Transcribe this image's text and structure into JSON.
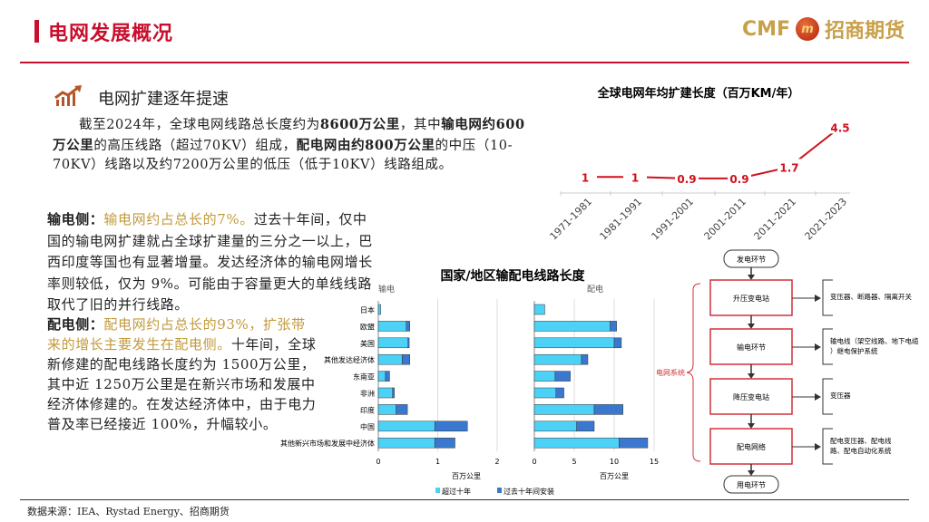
{
  "header": {
    "title": "电网发展概况",
    "logo_text": "CMF",
    "logo_mark": "m",
    "logo_cn": "招商期货"
  },
  "section": {
    "title": "电网扩建逐年提速",
    "icon": "growth-chart-icon"
  },
  "intro": {
    "p1": "截至2024年，全球电网线路总长度约为",
    "b1": "8600万公里",
    "p2": "，其中",
    "b2": "输电网约600万公里",
    "p3": "的高压线路（超过70KV）组成，",
    "b3": "配电网由约800万公里",
    "p4": "的中压（10-70KV）线路以及约7200万公里的低压（低于10KV）线路组成。"
  },
  "transmission": {
    "label": "输电侧：",
    "highlight": "输电网约占总长的7%。",
    "text": "过去十年间，仅中国的输电网扩建就占全球扩建量的三分之一以上，巴西印度等国也有显著增量。发达经济体的输电网增长率则较低，仅为 9%。可能由于容量更大的单线线路取代了旧的并行线路。"
  },
  "distribution": {
    "label": "配电侧：",
    "highlight": "配电网约占总长的93%，扩张带来的增长主要发生在配电侧。",
    "text": "十年间，全球新修建的配电线路长度约为 1500万公里，其中近 1250万公里是在新兴市场和发展中经济体修建的。在发达经济体中，由于电力普及率已经接近 100%，升幅较小。"
  },
  "footer": {
    "source": "数据来源：IEA、Rystad Energy、招商期货"
  },
  "colors": {
    "brand_red": "#c8102e",
    "gold": "#c29a3c",
    "bar_light": "#4dd2f7",
    "bar_dark": "#3a78d0",
    "line": "#d0101b"
  },
  "chart_data": [
    {
      "type": "line",
      "title": "全球电网年均扩建长度（百万KM/年）",
      "categories": [
        "1971-1981",
        "1981-1991",
        "1991-2001",
        "2001-2011",
        "2011-2021",
        "2021-2023"
      ],
      "values": [
        1,
        1,
        0.9,
        0.9,
        1.7,
        4.5
      ],
      "labels": [
        "1",
        "1",
        "0.9",
        "0.9",
        "1.7",
        "4.5"
      ],
      "grid": false
    },
    {
      "type": "bar",
      "orientation": "horizontal",
      "stacked": true,
      "title": "国家/地区输配电线路长度",
      "legend": [
        "超过十年",
        "过去十年间安装"
      ],
      "legend_position": "bottom",
      "categories": [
        "日本",
        "欧盟",
        "美国",
        "其他发达经济体",
        "东南亚",
        "非洲",
        "印度",
        "中国",
        "其他新兴市场和发展中经济体"
      ],
      "panels": [
        {
          "name": "输电",
          "xlabel": "百万公里",
          "xlim": [
            0,
            2
          ],
          "ticks": [
            "0",
            "1",
            "2"
          ],
          "series": [
            {
              "name": "超过十年",
              "values": [
                0.04,
                0.47,
                0.5,
                0.4,
                0.12,
                0.24,
                0.3,
                0.95,
                0.95
              ]
            },
            {
              "name": "过去十年间安装",
              "values": [
                0,
                0.06,
                0.02,
                0.13,
                0.07,
                0.03,
                0.19,
                0.55,
                0.34
              ]
            }
          ]
        },
        {
          "name": "配电",
          "xlabel": "百万公里",
          "xlim": [
            0,
            15
          ],
          "ticks": [
            "0",
            "5",
            "10",
            "15"
          ],
          "series": [
            {
              "name": "超过十年",
              "values": [
                1.3,
                9.5,
                10.0,
                5.9,
                2.6,
                2.7,
                7.5,
                5.3,
                10.6
              ]
            },
            {
              "name": "过去十年间安装",
              "values": [
                0,
                0.8,
                0.9,
                0.8,
                1.9,
                1.0,
                3.6,
                2.2,
                3.6
              ]
            }
          ]
        }
      ]
    }
  ],
  "flowchart": {
    "start": "发电环节",
    "end": "用电环节",
    "group_label": "电网系统",
    "steps": [
      {
        "label": "升压变电站",
        "detail": "变压器、断路器、隔离开关"
      },
      {
        "label": "输电环节",
        "detail": "输电线（架空线路、地下电缆）继电保护系统"
      },
      {
        "label": "降压变电站",
        "detail": "变压器"
      },
      {
        "label": "配电网络",
        "detail": "配电变压器、配电线路、配电自动化系统"
      }
    ]
  }
}
